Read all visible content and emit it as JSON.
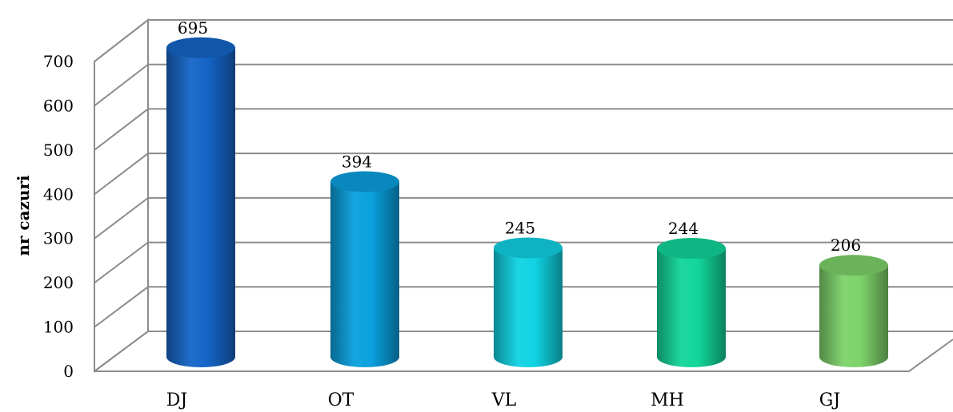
{
  "chart_data": {
    "type": "bar",
    "style": "3d-cylinder",
    "categories": [
      "DJ",
      "OT",
      "VL",
      "MH",
      "GJ"
    ],
    "values": [
      695,
      394,
      245,
      244,
      206
    ],
    "ylabel": "nr cazuri",
    "ylim": [
      0,
      700
    ],
    "yticks": [
      0,
      100,
      200,
      300,
      400,
      500,
      600,
      700
    ],
    "grid": true,
    "colors": [
      "#1565c8",
      "#0aa0de",
      "#10d3e3",
      "#12d69a",
      "#7ed36a"
    ]
  }
}
